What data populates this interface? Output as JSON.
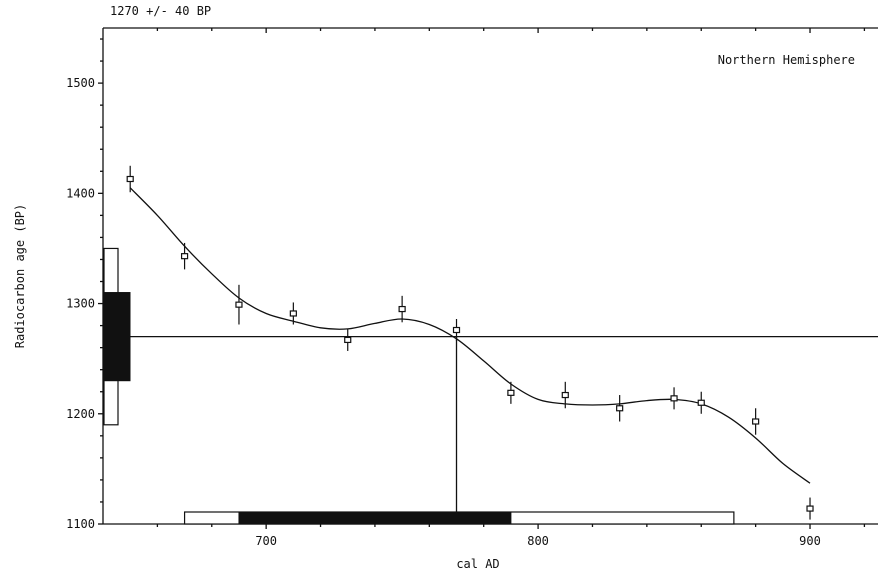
{
  "chart_data": {
    "type": "scatter",
    "title": "1270 +/- 40 BP",
    "annotation": "Northern Hemisphere",
    "xlabel": "cal AD",
    "ylabel": "Radiocarbon age (BP)",
    "xlim": [
      640,
      925
    ],
    "ylim": [
      1100,
      1550
    ],
    "xticks": [
      700,
      800,
      900
    ],
    "yticks": [
      1100,
      1200,
      1300,
      1400,
      1500
    ],
    "measured_age": 1270,
    "measured_sigma": 40,
    "calibration_points": [
      {
        "x": 650,
        "y": 1413,
        "err": 12
      },
      {
        "x": 670,
        "y": 1343,
        "err": 12
      },
      {
        "x": 690,
        "y": 1299,
        "err": 18
      },
      {
        "x": 710,
        "y": 1291,
        "err": 10
      },
      {
        "x": 730,
        "y": 1267,
        "err": 10
      },
      {
        "x": 750,
        "y": 1295,
        "err": 12
      },
      {
        "x": 770,
        "y": 1276,
        "err": 10
      },
      {
        "x": 790,
        "y": 1219,
        "err": 10
      },
      {
        "x": 810,
        "y": 1217,
        "err": 12
      },
      {
        "x": 830,
        "y": 1205,
        "err": 12
      },
      {
        "x": 850,
        "y": 1214,
        "err": 10
      },
      {
        "x": 860,
        "y": 1210,
        "err": 10
      },
      {
        "x": 880,
        "y": 1193,
        "err": 12
      },
      {
        "x": 900,
        "y": 1114,
        "err": 10
      }
    ],
    "calibration_curve": [
      [
        650,
        1405
      ],
      [
        660,
        1380
      ],
      [
        670,
        1352
      ],
      [
        680,
        1327
      ],
      [
        690,
        1305
      ],
      [
        700,
        1291
      ],
      [
        710,
        1284
      ],
      [
        720,
        1278
      ],
      [
        730,
        1277
      ],
      [
        740,
        1282
      ],
      [
        750,
        1286
      ],
      [
        760,
        1281
      ],
      [
        770,
        1268
      ],
      [
        780,
        1248
      ],
      [
        790,
        1227
      ],
      [
        800,
        1213
      ],
      [
        810,
        1209
      ],
      [
        820,
        1208
      ],
      [
        830,
        1209
      ],
      [
        840,
        1212
      ],
      [
        850,
        1213
      ],
      [
        860,
        1209
      ],
      [
        870,
        1197
      ],
      [
        880,
        1178
      ],
      [
        890,
        1155
      ],
      [
        900,
        1137
      ]
    ],
    "intercept_x": 770,
    "calibrated_range_1sigma": [
      690,
      790
    ],
    "calibrated_range_2sigma": [
      670,
      872
    ],
    "age_range_1sigma": [
      1230,
      1310
    ],
    "age_range_2sigma": [
      1190,
      1350
    ]
  }
}
